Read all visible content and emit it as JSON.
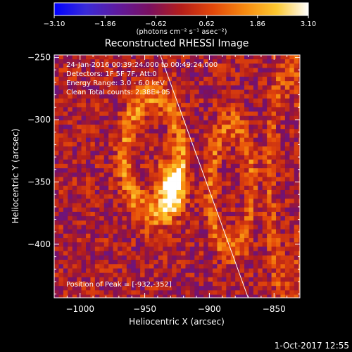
{
  "colorbar": {
    "tick_labels": [
      "-3.10",
      "-1.86",
      "-0.62",
      "0.62",
      "1.86",
      "3.10"
    ],
    "range": [
      -3.1,
      3.1
    ],
    "unit_label": "(photons cm⁻² s⁻¹ asec⁻²)",
    "colors": [
      "#0000ff",
      "#3a2bd8",
      "#5f1a9e",
      "#7a1060",
      "#b51e1a",
      "#e4480a",
      "#f78a10",
      "#fcc830",
      "#ffffff"
    ]
  },
  "chart_data": {
    "type": "heatmap",
    "title": "Reconstructed RHESSI Image",
    "xlabel": "Heliocentric X (arcsec)",
    "ylabel": "Heliocentric Y (arcsec)",
    "xlim": [
      -1020,
      -830
    ],
    "ylim": [
      -443,
      -248
    ],
    "x_ticks": [
      -1000,
      -950,
      -900,
      -850
    ],
    "y_ticks": [
      -250,
      -300,
      -350,
      -400
    ],
    "x_tick_labels": [
      "−1000",
      "−950",
      "−900",
      "−850"
    ],
    "y_tick_labels": [
      "−250",
      "−300",
      "−350",
      "−400"
    ],
    "info_lines": [
      "24-Jan-2016 00:39:24.000 to 00:49:24.000",
      "Detectors: 1F 5F 7F, Att:0",
      "Energy Range: 3.0 - 6.0 keV",
      "Clean    Total counts: 2.38E+05"
    ],
    "peak_label": "Position of Peak = [-932,-352]",
    "peak": [
      -932,
      -352
    ],
    "limb_line": [
      [
        -938,
        -248
      ],
      [
        -870,
        -443
      ]
    ],
    "sources": [
      {
        "name": "ring-left",
        "center": [
          -945,
          -327
        ],
        "rx": 22,
        "ry": 47,
        "value": 1.6
      },
      {
        "name": "core-peak",
        "center": [
          -932,
          -352
        ],
        "rx": 12,
        "ry": 24,
        "value": 3.1
      },
      {
        "name": "ring-right",
        "center": [
          -885,
          -352
        ],
        "rx": 16,
        "ry": 50,
        "value": 1.3
      },
      {
        "name": "outer-arc",
        "center": [
          -840,
          -345
        ],
        "rx": 15,
        "ry": 90,
        "value": 0.9
      }
    ],
    "grid": false
  },
  "footer": {
    "timestamp": "1-Oct-2017 12:55"
  }
}
